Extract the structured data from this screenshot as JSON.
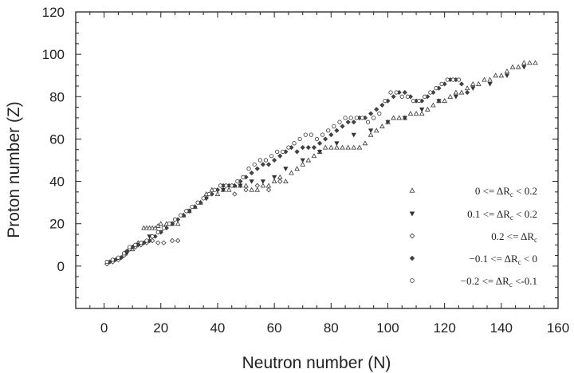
{
  "chart_data": {
    "type": "scatter",
    "title": "",
    "xlabel": "Neutron number (N)",
    "ylabel": "Proton number (Z)",
    "xlim": [
      -10,
      160
    ],
    "ylim": [
      -20,
      120
    ],
    "x_ticks": [
      "0",
      "20",
      "40",
      "60",
      "80",
      "100",
      "120",
      "140",
      "160"
    ],
    "y_ticks": [
      "0",
      "20",
      "40",
      "60",
      "80",
      "100",
      "120"
    ],
    "grid": false,
    "legend_position": "lower-right",
    "series": [
      {
        "name": "0 <= ΔRc < 0.2",
        "label_prefix": "0 <= ",
        "label_delta": "ΔR",
        "label_sub": "c",
        "label_suffix": " < 0.2",
        "marker": "open-triangle-up",
        "points": [
          [
            10,
            8
          ],
          [
            12,
            11
          ],
          [
            14,
            18
          ],
          [
            15,
            18
          ],
          [
            16,
            18
          ],
          [
            17,
            18
          ],
          [
            18,
            18
          ],
          [
            19,
            19
          ],
          [
            20,
            20
          ],
          [
            22,
            20
          ],
          [
            24,
            20
          ],
          [
            26,
            20
          ],
          [
            28,
            24
          ],
          [
            30,
            26
          ],
          [
            32,
            28
          ],
          [
            34,
            30
          ],
          [
            36,
            34
          ],
          [
            38,
            36
          ],
          [
            40,
            34
          ],
          [
            42,
            36
          ],
          [
            44,
            36
          ],
          [
            46,
            38
          ],
          [
            48,
            38
          ],
          [
            50,
            38
          ],
          [
            52,
            36
          ],
          [
            54,
            36
          ],
          [
            56,
            38
          ],
          [
            58,
            38
          ],
          [
            60,
            40
          ],
          [
            62,
            42
          ],
          [
            64,
            40
          ],
          [
            66,
            44
          ],
          [
            68,
            46
          ],
          [
            70,
            48
          ],
          [
            72,
            50
          ],
          [
            74,
            52
          ],
          [
            76,
            54
          ],
          [
            78,
            56
          ],
          [
            80,
            56
          ],
          [
            82,
            56
          ],
          [
            84,
            56
          ],
          [
            86,
            56
          ],
          [
            88,
            56
          ],
          [
            90,
            56
          ],
          [
            92,
            58
          ],
          [
            94,
            62
          ],
          [
            96,
            64
          ],
          [
            98,
            66
          ],
          [
            100,
            68
          ],
          [
            102,
            70
          ],
          [
            104,
            70
          ],
          [
            106,
            70
          ],
          [
            108,
            72
          ],
          [
            110,
            72
          ],
          [
            112,
            72
          ],
          [
            114,
            74
          ],
          [
            116,
            76
          ],
          [
            118,
            78
          ],
          [
            120,
            78
          ],
          [
            122,
            80
          ],
          [
            124,
            82
          ],
          [
            126,
            82
          ],
          [
            128,
            84
          ],
          [
            130,
            86
          ],
          [
            132,
            86
          ],
          [
            134,
            88
          ],
          [
            136,
            88
          ],
          [
            138,
            90
          ],
          [
            140,
            90
          ],
          [
            142,
            92
          ],
          [
            144,
            94
          ],
          [
            146,
            94
          ],
          [
            148,
            96
          ],
          [
            150,
            96
          ],
          [
            152,
            96
          ]
        ]
      },
      {
        "name": "0.1 <= ΔRc < 0.2",
        "label_prefix": "0.1 <= ",
        "label_delta": "ΔR",
        "label_sub": "c",
        "label_suffix": " < 0.2",
        "marker": "filled-triangle-down",
        "points": [
          [
            8,
            6
          ],
          [
            12,
            10
          ],
          [
            16,
            14
          ],
          [
            20,
            16
          ],
          [
            24,
            20
          ],
          [
            30,
            26
          ],
          [
            36,
            32
          ],
          [
            42,
            36
          ],
          [
            48,
            38
          ],
          [
            52,
            40
          ],
          [
            56,
            40
          ],
          [
            60,
            42
          ],
          [
            64,
            46
          ],
          [
            70,
            50
          ],
          [
            76,
            54
          ],
          [
            82,
            58
          ],
          [
            88,
            62
          ],
          [
            94,
            64
          ],
          [
            100,
            68
          ],
          [
            106,
            70
          ],
          [
            112,
            74
          ],
          [
            118,
            78
          ],
          [
            124,
            80
          ],
          [
            130,
            84
          ],
          [
            136,
            86
          ],
          [
            142,
            90
          ],
          [
            148,
            94
          ]
        ]
      },
      {
        "name": "0.2 <= ΔRc",
        "label_prefix": "0.2 <= ",
        "label_delta": "ΔR",
        "label_sub": "c",
        "label_suffix": "",
        "marker": "open-diamond",
        "points": [
          [
            1,
            1
          ],
          [
            3,
            2
          ],
          [
            5,
            3
          ],
          [
            7,
            5
          ],
          [
            9,
            8
          ],
          [
            11,
            9
          ],
          [
            13,
            10
          ],
          [
            15,
            11
          ],
          [
            17,
            12
          ],
          [
            19,
            11
          ],
          [
            21,
            11
          ],
          [
            24,
            12
          ],
          [
            26,
            12
          ],
          [
            46,
            34
          ],
          [
            50,
            36
          ],
          [
            54,
            38
          ],
          [
            58,
            36
          ],
          [
            62,
            40
          ]
        ]
      },
      {
        "name": "−0.1 <= ΔRc < 0",
        "label_prefix": "−0.1 <= ",
        "label_delta": "ΔR",
        "label_sub": "c",
        "label_suffix": " < 0",
        "marker": "filled-diamond",
        "points": [
          [
            2,
            2
          ],
          [
            4,
            3
          ],
          [
            6,
            4
          ],
          [
            8,
            7
          ],
          [
            10,
            9
          ],
          [
            12,
            10
          ],
          [
            14,
            11
          ],
          [
            16,
            12
          ],
          [
            18,
            14
          ],
          [
            20,
            16
          ],
          [
            22,
            18
          ],
          [
            24,
            20
          ],
          [
            26,
            22
          ],
          [
            28,
            24
          ],
          [
            30,
            26
          ],
          [
            32,
            28
          ],
          [
            34,
            30
          ],
          [
            36,
            32
          ],
          [
            38,
            34
          ],
          [
            40,
            36
          ],
          [
            42,
            38
          ],
          [
            44,
            38
          ],
          [
            46,
            38
          ],
          [
            48,
            40
          ],
          [
            50,
            42
          ],
          [
            52,
            44
          ],
          [
            54,
            46
          ],
          [
            56,
            48
          ],
          [
            58,
            48
          ],
          [
            60,
            50
          ],
          [
            62,
            52
          ],
          [
            64,
            54
          ],
          [
            66,
            56
          ],
          [
            68,
            54
          ],
          [
            70,
            56
          ],
          [
            72,
            56
          ],
          [
            74,
            56
          ],
          [
            76,
            58
          ],
          [
            78,
            60
          ],
          [
            80,
            62
          ],
          [
            82,
            64
          ],
          [
            84,
            66
          ],
          [
            86,
            68
          ],
          [
            88,
            68
          ],
          [
            90,
            70
          ],
          [
            92,
            70
          ],
          [
            94,
            72
          ],
          [
            96,
            74
          ],
          [
            98,
            76
          ],
          [
            100,
            78
          ],
          [
            102,
            80
          ],
          [
            104,
            82
          ],
          [
            106,
            82
          ],
          [
            108,
            80
          ],
          [
            110,
            78
          ],
          [
            112,
            78
          ],
          [
            114,
            80
          ],
          [
            116,
            82
          ],
          [
            118,
            84
          ],
          [
            120,
            86
          ],
          [
            122,
            88
          ],
          [
            124,
            88
          ],
          [
            126,
            86
          ],
          [
            128,
            82
          ]
        ]
      },
      {
        "name": "−0.2 <= ΔRc <-0.1",
        "label_prefix": "−0.2 <= ",
        "label_delta": "ΔR",
        "label_sub": "c",
        "label_suffix": " <-0.1",
        "marker": "open-circle",
        "points": [
          [
            1,
            2
          ],
          [
            3,
            3
          ],
          [
            5,
            4
          ],
          [
            7,
            6
          ],
          [
            9,
            9
          ],
          [
            11,
            10
          ],
          [
            13,
            11
          ],
          [
            15,
            12
          ],
          [
            17,
            14
          ],
          [
            19,
            16
          ],
          [
            21,
            18
          ],
          [
            23,
            20
          ],
          [
            25,
            22
          ],
          [
            27,
            24
          ],
          [
            29,
            26
          ],
          [
            31,
            28
          ],
          [
            33,
            30
          ],
          [
            35,
            32
          ],
          [
            37,
            34
          ],
          [
            39,
            36
          ],
          [
            41,
            38
          ],
          [
            43,
            38
          ],
          [
            45,
            38
          ],
          [
            47,
            40
          ],
          [
            49,
            42
          ],
          [
            51,
            46
          ],
          [
            53,
            48
          ],
          [
            55,
            50
          ],
          [
            57,
            50
          ],
          [
            59,
            52
          ],
          [
            61,
            54
          ],
          [
            63,
            54
          ],
          [
            65,
            56
          ],
          [
            67,
            58
          ],
          [
            69,
            60
          ],
          [
            71,
            62
          ],
          [
            73,
            62
          ],
          [
            75,
            60
          ],
          [
            77,
            62
          ],
          [
            79,
            64
          ],
          [
            81,
            66
          ],
          [
            83,
            68
          ],
          [
            85,
            70
          ],
          [
            87,
            70
          ],
          [
            89,
            70
          ],
          [
            91,
            70
          ],
          [
            93,
            68
          ],
          [
            95,
            70
          ],
          [
            97,
            72
          ],
          [
            99,
            78
          ],
          [
            101,
            82
          ],
          [
            103,
            82
          ],
          [
            105,
            80
          ],
          [
            107,
            80
          ],
          [
            109,
            78
          ],
          [
            111,
            78
          ],
          [
            113,
            80
          ],
          [
            115,
            82
          ],
          [
            117,
            84
          ],
          [
            119,
            86
          ],
          [
            121,
            88
          ],
          [
            123,
            88
          ],
          [
            125,
            88
          ]
        ]
      }
    ]
  }
}
